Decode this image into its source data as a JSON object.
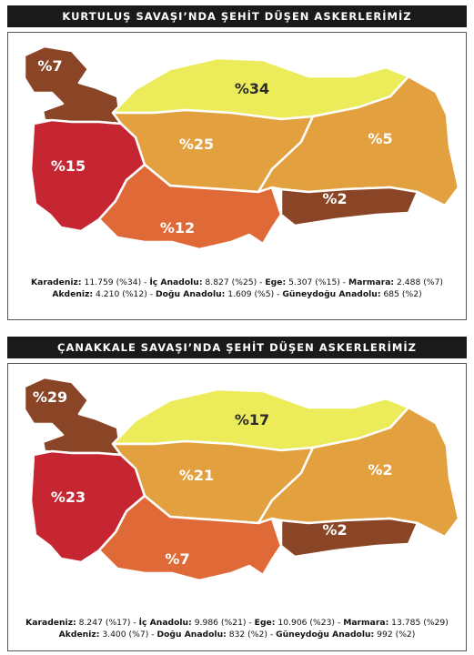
{
  "colors": {
    "karadeniz": "#ecec5a",
    "ic_anadolu": "#e3a03f",
    "ege": "#c52632",
    "marmara": "#8a4526",
    "akdeniz": "#e06a37",
    "dogu_anadolu": "#e3a03f",
    "guneydogu_anadolu": "#8a4526",
    "label_light": "#ffffff",
    "label_dark": "#2b2b2b"
  },
  "panels": [
    {
      "title": "KURTULUŞ SAVAŞI’NDA ŞEHİT DÜŞEN ASKERLERİMİZ",
      "labels": {
        "marmara": "%7",
        "karadeniz": "%34",
        "ege": "%15",
        "ic_anadolu": "%25",
        "dogu_anadolu": "%5",
        "guneydogu_anadolu": "%2",
        "akdeniz": "%12"
      },
      "stats": [
        {
          "name": "Karadeniz:",
          "value": "11.759 (%34)"
        },
        {
          "name": "İç Anadolu:",
          "value": "8.827 (%25)"
        },
        {
          "name": "Ege:",
          "value": "5.307 (%15)"
        },
        {
          "name": "Marmara:",
          "value": "2.488 (%7)"
        },
        {
          "name": "Akdeniz:",
          "value": "4.210 (%12)"
        },
        {
          "name": "Doğu Anadolu:",
          "value": "1.609 (%5)"
        },
        {
          "name": "Güneydoğu Anadolu:",
          "value": "685 (%2)"
        }
      ]
    },
    {
      "title": "ÇANAKKALE SAVAŞI’NDA ŞEHİT DÜŞEN ASKERLERİMİZ",
      "labels": {
        "marmara": "%29",
        "karadeniz": "%17",
        "ege": "%23",
        "ic_anadolu": "%21",
        "dogu_anadolu": "%2",
        "guneydogu_anadolu": "%2",
        "akdeniz": "%7"
      },
      "stats": [
        {
          "name": "Karadeniz:",
          "value": "8.247 (%17)"
        },
        {
          "name": "İç Anadolu:",
          "value": "9.986 (%21)"
        },
        {
          "name": "Ege:",
          "value": "10.906 (%23)"
        },
        {
          "name": "Marmara:",
          "value": "13.785 (%29)"
        },
        {
          "name": "Akdeniz:",
          "value": "3.400 (%7)"
        },
        {
          "name": "Doğu Anadolu:",
          "value": "832 (%2)"
        },
        {
          "name": "Güneydoğu Anadolu:",
          "value": "992 (%2)"
        }
      ]
    }
  ]
}
